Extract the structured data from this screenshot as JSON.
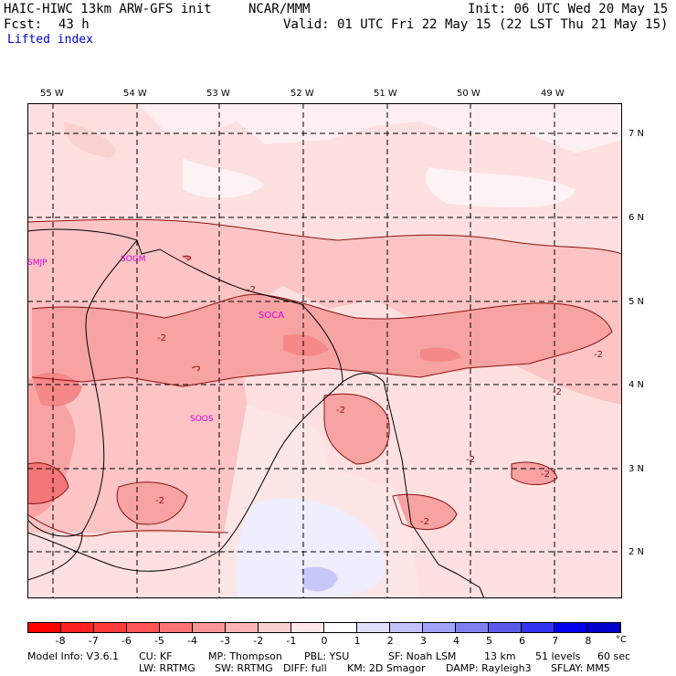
{
  "header": {
    "model_title": "HAIC-HIWC 13km ARW-GFS init",
    "org": "NCAR/MMM",
    "init_text": "Init: 06 UTC Wed 20 May 15",
    "fcst_label": "Fcst:",
    "fcst_value": "43 h",
    "valid_text": "Valid: 01 UTC Fri 22 May 15 (22 LST Thu 21 May 15)",
    "field_name": "Lifted index"
  },
  "map": {
    "lon_labels": [
      "55 W",
      "54 W",
      "53 W",
      "52 W",
      "51 W",
      "50 W",
      "49 W"
    ],
    "lat_labels": [
      "7 N",
      "6 N",
      "5 N",
      "4 N",
      "3 N",
      "2 N"
    ],
    "station_labels": [
      "SMJP",
      "SOGM",
      "SOCA",
      "SOOS"
    ],
    "contour_labels": [
      "-2",
      "-2",
      "-2",
      "-2",
      "-2",
      "-2",
      "-2",
      "-2",
      "-2"
    ],
    "station_color": "#dd00dd"
  },
  "colorbar": {
    "values": [
      "-8",
      "-7",
      "-6",
      "-5",
      "-4",
      "-3",
      "-2",
      "-1",
      "0",
      "1",
      "2",
      "3",
      "4",
      "5",
      "6",
      "7",
      "8"
    ],
    "unit": "°C",
    "colors": [
      "#ff0000",
      "#ff2020",
      "#ff3b3b",
      "#ff5555",
      "#fb7373",
      "#fb9595",
      "#fcb3b3",
      "#fdd0d0",
      "#fee8e8",
      "#ffffff",
      "#e0e0ff",
      "#c3c3fb",
      "#a3a3f7",
      "#8080f0",
      "#5a5aeb",
      "#3333f0",
      "#0000ee",
      "#0000cc"
    ]
  },
  "footer": {
    "line1": [
      "Model Info: V3.6.1",
      "CU: KF",
      "MP: Thompson",
      "PBL: YSU",
      "SF: Noah LSM",
      "13 km",
      "51 levels",
      "60 sec"
    ],
    "line2": [
      "LW: RRTMG",
      "SW: RRTMG",
      "DIFF: full",
      "KM: 2D Smagor",
      "DAMP: Rayleigh3",
      "SFLAY: MM5"
    ]
  }
}
